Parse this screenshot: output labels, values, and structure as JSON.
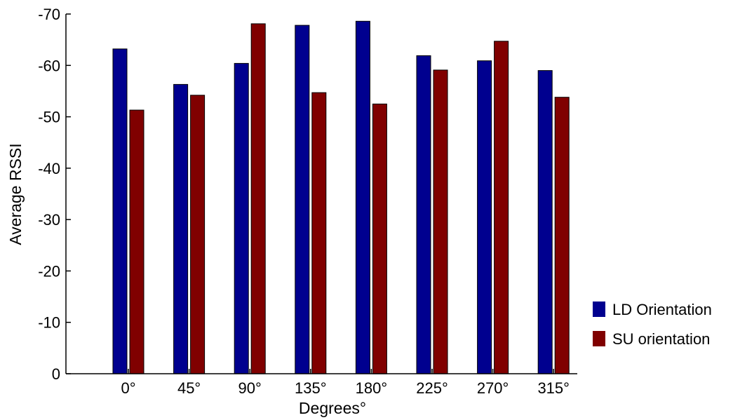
{
  "chart_data": {
    "type": "bar",
    "categories": [
      "0°",
      "45°",
      "90°",
      "135°",
      "180°",
      "225°",
      "270°",
      "315°"
    ],
    "series": [
      {
        "name": "LD Orientation",
        "color": "#00008f",
        "values": [
          -63.2,
          -56.3,
          -60.4,
          -67.8,
          -68.6,
          -61.9,
          -60.9,
          -59.0
        ]
      },
      {
        "name": "SU orientation",
        "color": "#800000",
        "values": [
          -51.3,
          -54.2,
          -68.1,
          -54.7,
          -52.5,
          -59.1,
          -64.7,
          -53.8
        ]
      }
    ],
    "xlabel": "Degrees°",
    "ylabel": "Average RSSI",
    "ylim": [
      0,
      -70
    ],
    "yticks": [
      0,
      -10,
      -20,
      -30,
      -40,
      -50,
      -60,
      -70
    ],
    "ytick_labels": [
      "0",
      "-10",
      "-20",
      "-30",
      "-40",
      "-50",
      "-60",
      "-70"
    ],
    "grid": false,
    "legend_position": "right"
  }
}
